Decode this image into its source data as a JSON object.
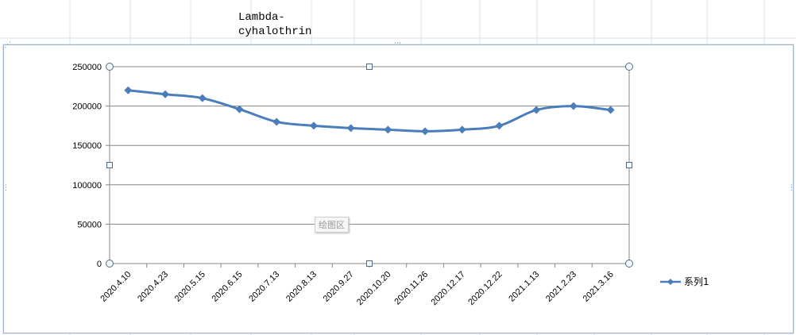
{
  "sheet": {
    "cell_text": "Lambda-\ncyhalothrin"
  },
  "chart_data": {
    "type": "line",
    "categories": [
      "2020.4.10",
      "2020.4.23",
      "2020.5.15",
      "2020.6.15",
      "2020.7.13",
      "2020.8.13",
      "2020.9.27",
      "2020.10.20",
      "2020.11.26",
      "2020.12.17",
      "2020.12.22",
      "2021.1.13",
      "2021.2.23",
      "2021.3.16"
    ],
    "series": [
      {
        "name": "系列1",
        "values": [
          220000,
          215000,
          210000,
          196000,
          180000,
          175000,
          172000,
          170000,
          168000,
          170000,
          175000,
          195000,
          200000,
          195000
        ],
        "color": "#4a7ebb",
        "marker": "diamond"
      }
    ],
    "ylim": [
      0,
      250000
    ],
    "yticks": [
      0,
      50000,
      100000,
      150000,
      200000,
      250000
    ],
    "grid": true,
    "legend_position": "right",
    "plot_area_tag": "绘图区"
  },
  "colors": {
    "grid": "#878787",
    "sheet_grid": "#d9e1ea",
    "selection_handle": "#4f6b8a"
  }
}
